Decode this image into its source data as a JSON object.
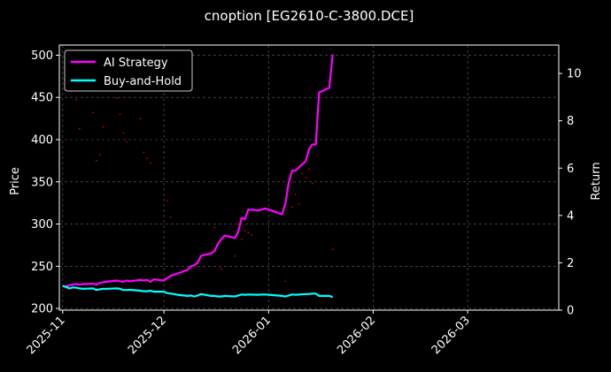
{
  "chart_data": {
    "type": "line",
    "title": "cnoption [EG2610-C-3800.DCE]",
    "colors": {
      "background": "#000000",
      "grid": "#666666",
      "ai_strategy": "#ff00ff",
      "buy_and_hold": "#00ffff",
      "price": "#cc0000"
    },
    "grid": true,
    "legend_position": "top-left",
    "x_axis": {
      "range": [
        "2025-10-31",
        "2026-03-28"
      ],
      "ticks": [
        "2025-11-01",
        "2025-12-01",
        "2026-01-01",
        "2026-02-01",
        "2026-03-01"
      ],
      "tick_labels": [
        "2025-11",
        "2025-12",
        "2026-01",
        "2026-02",
        "2026-03"
      ]
    },
    "left_axis": {
      "label": "Price",
      "range": [
        198,
        512
      ],
      "ticks": [
        200,
        250,
        300,
        350,
        400,
        450,
        500
      ]
    },
    "right_axis": {
      "label": "Return",
      "range": [
        0,
        11.2
      ],
      "ticks": [
        0,
        2,
        4,
        6,
        8,
        10
      ]
    },
    "series": [
      {
        "name": "AI Strategy",
        "axis": "right",
        "x": [
          "2025-11-01",
          "2025-11-02",
          "2025-11-03",
          "2025-11-04",
          "2025-11-05",
          "2025-11-06",
          "2025-11-07",
          "2025-11-10",
          "2025-11-11",
          "2025-11-12",
          "2025-11-13",
          "2025-11-14",
          "2025-11-17",
          "2025-11-18",
          "2025-11-19",
          "2025-11-20",
          "2025-11-21",
          "2025-11-24",
          "2025-11-25",
          "2025-11-26",
          "2025-11-27",
          "2025-11-28",
          "2025-12-01",
          "2025-12-02",
          "2025-12-03",
          "2025-12-04",
          "2025-12-05",
          "2025-12-08",
          "2025-12-09",
          "2025-12-10",
          "2025-12-11",
          "2025-12-12",
          "2025-12-15",
          "2025-12-16",
          "2025-12-17",
          "2025-12-18",
          "2025-12-19",
          "2025-12-22",
          "2025-12-23",
          "2025-12-24",
          "2025-12-25",
          "2025-12-26",
          "2025-12-29",
          "2025-12-30",
          "2025-12-31",
          "2026-01-05",
          "2026-01-06",
          "2026-01-07",
          "2026-01-08",
          "2026-01-09",
          "2026-01-12",
          "2026-01-13",
          "2026-01-14",
          "2026-01-15",
          "2026-01-16",
          "2026-01-19",
          "2026-01-20"
        ],
        "y": [
          1.02,
          1.0,
          1.05,
          1.08,
          1.1,
          1.08,
          1.1,
          1.12,
          1.08,
          1.15,
          1.18,
          1.2,
          1.25,
          1.22,
          1.2,
          1.25,
          1.22,
          1.28,
          1.25,
          1.28,
          1.2,
          1.3,
          1.25,
          1.35,
          1.45,
          1.5,
          1.55,
          1.7,
          1.85,
          1.9,
          2.0,
          2.3,
          2.4,
          2.5,
          2.8,
          3.0,
          3.15,
          3.05,
          3.3,
          3.9,
          3.85,
          4.25,
          4.22,
          4.25,
          4.3,
          4.05,
          4.5,
          5.4,
          5.9,
          5.9,
          6.3,
          6.8,
          7.0,
          7.0,
          9.2,
          9.4,
          10.8
        ]
      },
      {
        "name": "Buy-and-Hold",
        "axis": "right",
        "x": [
          "2025-11-01",
          "2025-11-02",
          "2025-11-03",
          "2025-11-04",
          "2025-11-05",
          "2025-11-06",
          "2025-11-07",
          "2025-11-10",
          "2025-11-11",
          "2025-11-12",
          "2025-11-13",
          "2025-11-14",
          "2025-11-17",
          "2025-11-18",
          "2025-11-19",
          "2025-11-20",
          "2025-11-21",
          "2025-11-24",
          "2025-11-25",
          "2025-11-26",
          "2025-11-27",
          "2025-11-28",
          "2025-12-01",
          "2025-12-02",
          "2025-12-03",
          "2025-12-04",
          "2025-12-05",
          "2025-12-08",
          "2025-12-09",
          "2025-12-10",
          "2025-12-11",
          "2025-12-12",
          "2025-12-15",
          "2025-12-16",
          "2025-12-17",
          "2025-12-18",
          "2025-12-19",
          "2025-12-22",
          "2025-12-23",
          "2025-12-24",
          "2025-12-25",
          "2025-12-26",
          "2025-12-29",
          "2025-12-30",
          "2025-12-31",
          "2026-01-05",
          "2026-01-06",
          "2026-01-07",
          "2026-01-08",
          "2026-01-09",
          "2026-01-12",
          "2026-01-13",
          "2026-01-14",
          "2026-01-15",
          "2026-01-16",
          "2026-01-19",
          "2026-01-20"
        ],
        "y": [
          1.02,
          0.98,
          0.92,
          0.96,
          0.95,
          0.92,
          0.9,
          0.92,
          0.85,
          0.88,
          0.9,
          0.9,
          0.92,
          0.9,
          0.85,
          0.85,
          0.86,
          0.82,
          0.8,
          0.8,
          0.82,
          0.78,
          0.78,
          0.72,
          0.7,
          0.68,
          0.65,
          0.6,
          0.62,
          0.58,
          0.62,
          0.68,
          0.6,
          0.6,
          0.58,
          0.58,
          0.6,
          0.58,
          0.62,
          0.66,
          0.65,
          0.66,
          0.65,
          0.66,
          0.66,
          0.6,
          0.58,
          0.62,
          0.66,
          0.65,
          0.68,
          0.68,
          0.7,
          0.7,
          0.6,
          0.6,
          0.55
        ]
      },
      {
        "name": "Price",
        "axis": "left",
        "style": "points",
        "x": [
          "2025-11-05",
          "2025-11-06",
          "2025-11-10",
          "2025-11-11",
          "2025-11-12",
          "2025-11-13",
          "2025-11-17",
          "2025-11-18",
          "2025-11-19",
          "2025-11-20",
          "2025-11-24",
          "2025-11-25",
          "2025-11-26",
          "2025-11-27",
          "2025-12-01",
          "2025-12-02",
          "2025-12-03",
          "2025-12-16",
          "2025-12-18",
          "2025-12-22",
          "2025-12-23",
          "2025-12-24",
          "2025-12-25",
          "2025-12-26",
          "2025-12-27",
          "2026-01-06",
          "2026-01-08",
          "2026-01-09",
          "2026-01-10",
          "2026-01-11",
          "2026-01-12",
          "2026-01-13",
          "2026-01-14",
          "2026-01-20"
        ],
        "y": [
          447,
          413,
          432,
          375,
          382,
          415,
          449,
          430,
          408,
          397,
          425,
          385,
          378,
          372,
          385,
          328,
          308,
          296,
          247,
          262,
          300,
          282,
          292,
          290,
          287,
          232,
          320,
          335,
          324,
          360,
          355,
          365,
          348,
          270
        ]
      }
    ]
  }
}
